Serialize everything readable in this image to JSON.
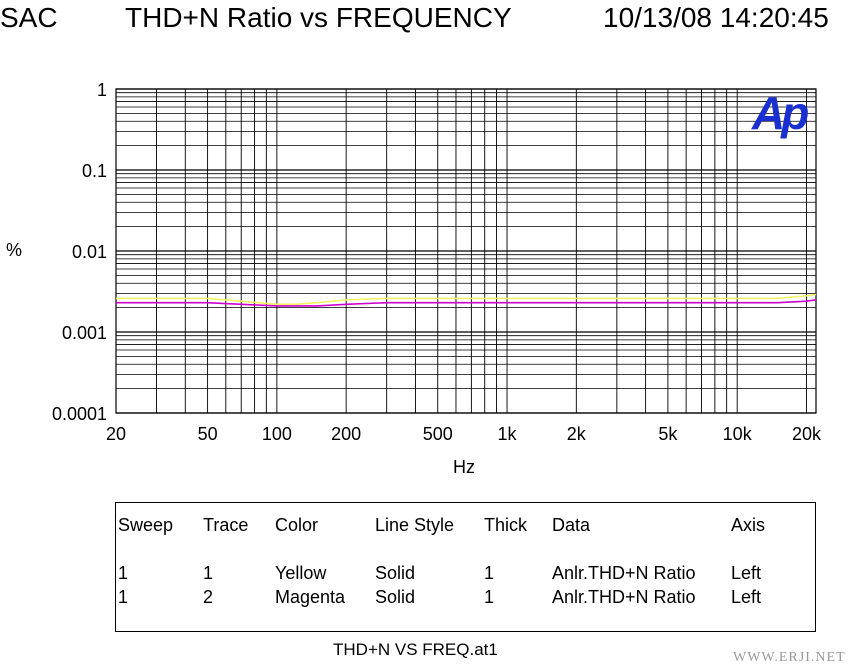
{
  "header": {
    "left": "SAC",
    "center": "THD+N Ratio vs FREQUENCY",
    "right": "10/13/08 14:20:45"
  },
  "logo": "Ap",
  "chart_data": {
    "type": "line",
    "xlabel": "Hz",
    "ylabel": "%",
    "x_scale": "log",
    "y_scale": "log",
    "xlim": [
      20,
      22000
    ],
    "ylim": [
      0.0001,
      1
    ],
    "x_ticks": [
      {
        "v": 20,
        "label": "20"
      },
      {
        "v": 50,
        "label": "50"
      },
      {
        "v": 100,
        "label": "100"
      },
      {
        "v": 200,
        "label": "200"
      },
      {
        "v": 500,
        "label": "500"
      },
      {
        "v": 1000,
        "label": "1k"
      },
      {
        "v": 2000,
        "label": "2k"
      },
      {
        "v": 5000,
        "label": "5k"
      },
      {
        "v": 10000,
        "label": "10k"
      },
      {
        "v": 20000,
        "label": "20k"
      }
    ],
    "y_ticks": [
      {
        "v": 1,
        "label": "1"
      },
      {
        "v": 0.1,
        "label": "0.1"
      },
      {
        "v": 0.01,
        "label": "0.01"
      },
      {
        "v": 0.001,
        "label": "0.001"
      },
      {
        "v": 0.0001,
        "label": "0.0001"
      }
    ],
    "grid": true,
    "series": [
      {
        "color": "#f2f266",
        "x": [
          20,
          30,
          50,
          70,
          100,
          120,
          150,
          200,
          300,
          500,
          1000,
          2000,
          5000,
          10000,
          15000,
          20000,
          22000
        ],
        "y": [
          0.0026,
          0.0026,
          0.0026,
          0.0024,
          0.0022,
          0.0022,
          0.0023,
          0.0025,
          0.0026,
          0.0026,
          0.0026,
          0.0026,
          0.0026,
          0.0026,
          0.0026,
          0.0028,
          0.0029
        ]
      },
      {
        "color": "#cc00cc",
        "x": [
          20,
          30,
          50,
          70,
          100,
          120,
          150,
          200,
          300,
          500,
          1000,
          2000,
          5000,
          10000,
          15000,
          20000,
          22000
        ],
        "y": [
          0.0023,
          0.0023,
          0.0023,
          0.0022,
          0.0021,
          0.0021,
          0.0021,
          0.0022,
          0.0023,
          0.0023,
          0.0023,
          0.0023,
          0.0023,
          0.0023,
          0.0023,
          0.0024,
          0.0025
        ]
      }
    ]
  },
  "legend": {
    "headers": [
      "Sweep",
      "Trace",
      "Color",
      "Line Style",
      "Thick",
      "Data",
      "Axis"
    ],
    "rows": [
      [
        "1",
        "1",
        "Yellow",
        "Solid",
        "1",
        "Anlr.THD+N Ratio",
        "Left"
      ],
      [
        "1",
        "2",
        "Magenta",
        "Solid",
        "1",
        "Anlr.THD+N Ratio",
        "Left"
      ]
    ]
  },
  "footer": "THD+N VS FREQ.at1",
  "watermark": "WWW.ERJI.NET"
}
